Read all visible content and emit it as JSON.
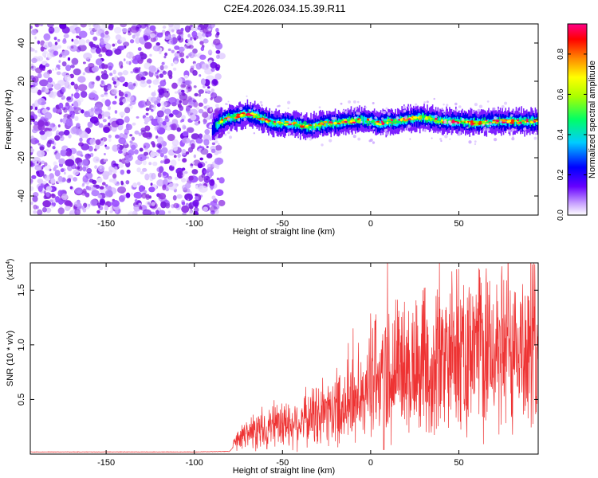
{
  "title": "C2E4.2026.034.15.39.R11",
  "chart_data": [
    {
      "type": "heatmap",
      "xlabel": "Height of straight line (km)",
      "ylabel": "Frequency (Hz)",
      "xlim": [
        -193,
        95
      ],
      "ylim": [
        -50,
        50
      ],
      "xticks": [
        -150,
        -100,
        -50,
        0,
        50
      ],
      "xtick_labels": [
        "-150",
        "-100",
        "-50",
        "0",
        "50"
      ],
      "yticks": [
        40,
        20,
        0,
        -20,
        -40
      ],
      "ytick_labels": [
        "40",
        "20",
        "0",
        "-20",
        "-40"
      ],
      "noise_region_x": [
        -193,
        -88
      ],
      "signal_region_x": [
        -90,
        95
      ],
      "ridge_centre": [
        {
          "x": -90,
          "y": -5
        },
        {
          "x": -85,
          "y": -1
        },
        {
          "x": -80,
          "y": 1
        },
        {
          "x": -75,
          "y": 2
        },
        {
          "x": -70,
          "y": 3
        },
        {
          "x": -65,
          "y": 2
        },
        {
          "x": -60,
          "y": 0
        },
        {
          "x": -55,
          "y": -2
        },
        {
          "x": -50,
          "y": -2
        },
        {
          "x": -45,
          "y": -2
        },
        {
          "x": -40,
          "y": -3
        },
        {
          "x": -35,
          "y": -4
        },
        {
          "x": -30,
          "y": -3
        },
        {
          "x": -25,
          "y": -2
        },
        {
          "x": -20,
          "y": -2
        },
        {
          "x": -15,
          "y": -1
        },
        {
          "x": -10,
          "y": -1
        },
        {
          "x": -5,
          "y": 0
        },
        {
          "x": 0,
          "y": -1
        },
        {
          "x": 5,
          "y": -2
        },
        {
          "x": 10,
          "y": -1
        },
        {
          "x": 15,
          "y": -1
        },
        {
          "x": 20,
          "y": 0
        },
        {
          "x": 25,
          "y": 1
        },
        {
          "x": 30,
          "y": 1
        },
        {
          "x": 35,
          "y": 0
        },
        {
          "x": 40,
          "y": -1
        },
        {
          "x": 50,
          "y": -1
        },
        {
          "x": 60,
          "y": -2
        },
        {
          "x": 70,
          "y": -1
        },
        {
          "x": 80,
          "y": -1
        },
        {
          "x": 90,
          "y": -1
        },
        {
          "x": 95,
          "y": -1
        }
      ],
      "colorbar": {
        "label": "Normalized spectral amplitude",
        "range": [
          0,
          0.95
        ],
        "ticks": [
          0.0,
          0.2,
          0.4,
          0.6,
          0.8
        ],
        "tick_labels": [
          "0.0",
          "0.2",
          "0.4",
          "0.6",
          "0.8"
        ],
        "colors": [
          "#ffffff",
          "#8a2be2",
          "#6600ff",
          "#0000ff",
          "#00ffff",
          "#00ff00",
          "#ffff00",
          "#ff8000",
          "#ff0000",
          "#ff0080"
        ]
      }
    },
    {
      "type": "line",
      "xlabel": "Height of straight line (km)",
      "ylabel": "SNR (10 * v/v)",
      "multiplier_base": "(x10",
      "multiplier_exp": "4",
      "multiplier_close": ")",
      "xlim": [
        -193,
        95
      ],
      "ylim": [
        0,
        17500
      ],
      "xticks": [
        -150,
        -100,
        -50,
        0,
        50
      ],
      "xtick_labels": [
        "-150",
        "-100",
        "-50",
        "0",
        "50"
      ],
      "yticks": [
        15000,
        10000,
        5000
      ],
      "ytick_labels": [
        "1.5",
        "1.0",
        "0.5"
      ],
      "color": "#ee3333",
      "series": [
        {
          "x": -193,
          "y": 200
        },
        {
          "x": -150,
          "y": 200
        },
        {
          "x": -100,
          "y": 200
        },
        {
          "x": -80,
          "y": 250
        },
        {
          "x": -75,
          "y": 1200
        },
        {
          "x": -70,
          "y": 2000
        },
        {
          "x": -60,
          "y": 2300
        },
        {
          "x": -50,
          "y": 2600
        },
        {
          "x": -40,
          "y": 3000
        },
        {
          "x": -30,
          "y": 3600
        },
        {
          "x": -20,
          "y": 4200
        },
        {
          "x": -10,
          "y": 5000
        },
        {
          "x": 0,
          "y": 6500
        },
        {
          "x": 5,
          "y": 7000
        },
        {
          "x": 10,
          "y": 7500
        },
        {
          "x": 20,
          "y": 8000
        },
        {
          "x": 30,
          "y": 8500
        },
        {
          "x": 40,
          "y": 8800
        },
        {
          "x": 50,
          "y": 9100
        },
        {
          "x": 60,
          "y": 9300
        },
        {
          "x": 70,
          "y": 9500
        },
        {
          "x": 80,
          "y": 9700
        },
        {
          "x": 95,
          "y": 9800
        }
      ],
      "spikes": [
        {
          "x": 9.5,
          "y": 17800
        },
        {
          "x": 39,
          "y": 17500
        },
        {
          "x": 3,
          "y": 12800
        },
        {
          "x": -10,
          "y": 11500
        },
        {
          "x": 30,
          "y": 14000
        }
      ]
    }
  ]
}
